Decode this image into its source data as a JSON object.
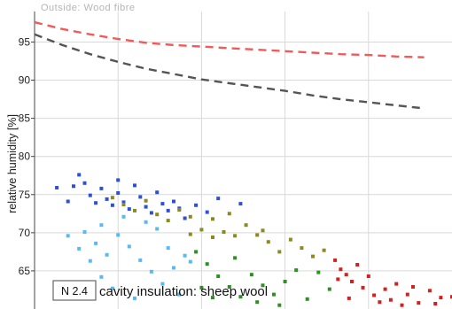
{
  "header": {
    "text": "Outside: Wood fibre"
  },
  "chart_data": {
    "type": "scatter",
    "ylabel": "relative humidity [%]",
    "ylim": [
      60,
      99
    ],
    "yticks": [
      65,
      70,
      75,
      80,
      85,
      90,
      95
    ],
    "grid": true,
    "panel_id": "N 2.4",
    "panel_label": "cavity insulation: sheep wool",
    "curves": [
      {
        "color": "#f05a5a",
        "dash": true,
        "points": [
          [
            0,
            97.6
          ],
          [
            10,
            96.7
          ],
          [
            20,
            96.0
          ],
          [
            30,
            95.4
          ],
          [
            40,
            94.9
          ],
          [
            50,
            94.6
          ],
          [
            60,
            94.4
          ],
          [
            70,
            94.2
          ],
          [
            80,
            94.0
          ],
          [
            90,
            93.8
          ],
          [
            100,
            93.6
          ],
          [
            110,
            93.4
          ],
          [
            120,
            93.3
          ],
          [
            130,
            93.1
          ],
          [
            140,
            93.0
          ]
        ]
      },
      {
        "color": "#555555",
        "dash": true,
        "points": [
          [
            0,
            96.0
          ],
          [
            10,
            94.6
          ],
          [
            20,
            93.4
          ],
          [
            30,
            92.4
          ],
          [
            40,
            91.5
          ],
          [
            50,
            90.8
          ],
          [
            60,
            90.1
          ],
          [
            70,
            89.6
          ],
          [
            80,
            89.1
          ],
          [
            90,
            88.6
          ],
          [
            100,
            88.0
          ],
          [
            110,
            87.5
          ],
          [
            120,
            87.1
          ],
          [
            130,
            86.7
          ],
          [
            140,
            86.3
          ]
        ]
      }
    ],
    "scatter_series": [
      {
        "color": "#2f4fd8",
        "points": [
          [
            8,
            75.9
          ],
          [
            12,
            74.1
          ],
          [
            16,
            77.6
          ],
          [
            18,
            76.5
          ],
          [
            20,
            74.9
          ],
          [
            22,
            73.9
          ],
          [
            24,
            75.8
          ],
          [
            26,
            74.4
          ],
          [
            28,
            73.6
          ],
          [
            30,
            75.2
          ],
          [
            32,
            74.0
          ],
          [
            34,
            73.1
          ],
          [
            36,
            76.2
          ],
          [
            38,
            74.7
          ],
          [
            40,
            73.4
          ],
          [
            42,
            72.6
          ],
          [
            44,
            75.3
          ],
          [
            46,
            73.8
          ],
          [
            48,
            72.9
          ],
          [
            50,
            74.1
          ],
          [
            52,
            73.2
          ],
          [
            54,
            71.9
          ],
          [
            14,
            76.1
          ],
          [
            30,
            76.9
          ],
          [
            58,
            73.6
          ],
          [
            62,
            72.7
          ],
          [
            66,
            74.5
          ],
          [
            74,
            73.8
          ]
        ]
      },
      {
        "color": "#8a8a22",
        "points": [
          [
            28,
            74.6
          ],
          [
            32,
            73.7
          ],
          [
            36,
            72.9
          ],
          [
            40,
            74.2
          ],
          [
            44,
            72.4
          ],
          [
            48,
            71.6
          ],
          [
            52,
            73.0
          ],
          [
            56,
            72.1
          ],
          [
            60,
            70.4
          ],
          [
            64,
            71.8
          ],
          [
            68,
            70.1
          ],
          [
            72,
            69.6
          ],
          [
            76,
            71.0
          ],
          [
            80,
            69.7
          ],
          [
            84,
            68.8
          ],
          [
            88,
            67.5
          ],
          [
            92,
            69.1
          ],
          [
            96,
            68.0
          ],
          [
            100,
            66.9
          ],
          [
            104,
            67.7
          ],
          [
            64,
            69.4
          ],
          [
            56,
            69.8
          ],
          [
            70,
            72.5
          ],
          [
            82,
            70.3
          ]
        ]
      },
      {
        "color": "#55bbf2",
        "points": [
          [
            12,
            69.6
          ],
          [
            16,
            67.9
          ],
          [
            20,
            66.3
          ],
          [
            24,
            64.2
          ],
          [
            18,
            70.1
          ],
          [
            22,
            68.6
          ],
          [
            26,
            67.1
          ],
          [
            30,
            69.7
          ],
          [
            34,
            68.2
          ],
          [
            38,
            66.4
          ],
          [
            42,
            64.9
          ],
          [
            46,
            63.3
          ],
          [
            50,
            65.4
          ],
          [
            54,
            67.0
          ],
          [
            28,
            62.7
          ],
          [
            36,
            61.4
          ],
          [
            44,
            70.5
          ],
          [
            48,
            68.0
          ],
          [
            52,
            61.9
          ],
          [
            40,
            71.4
          ],
          [
            32,
            72.1
          ],
          [
            24,
            71.0
          ],
          [
            20,
            62.3
          ],
          [
            56,
            66.2
          ]
        ]
      },
      {
        "color": "#2f8f24",
        "points": [
          [
            58,
            67.5
          ],
          [
            62,
            65.9
          ],
          [
            66,
            64.3
          ],
          [
            70,
            62.9
          ],
          [
            74,
            61.6
          ],
          [
            78,
            64.5
          ],
          [
            82,
            63.1
          ],
          [
            86,
            61.9
          ],
          [
            90,
            63.6
          ],
          [
            94,
            65.1
          ],
          [
            98,
            61.3
          ],
          [
            64,
            61.5
          ],
          [
            72,
            66.7
          ],
          [
            80,
            60.9
          ],
          [
            88,
            60.5
          ],
          [
            102,
            64.8
          ],
          [
            106,
            62.6
          ],
          [
            60,
            62.8
          ]
        ]
      },
      {
        "color": "#d42020",
        "points": [
          [
            108,
            66.4
          ],
          [
            110,
            65.2
          ],
          [
            112,
            64.5
          ],
          [
            114,
            63.6
          ],
          [
            116,
            65.8
          ],
          [
            118,
            62.8
          ],
          [
            122,
            61.8
          ],
          [
            126,
            62.6
          ],
          [
            128,
            61.2
          ],
          [
            130,
            63.3
          ],
          [
            134,
            61.9
          ],
          [
            138,
            60.8
          ],
          [
            142,
            62.4
          ],
          [
            146,
            61.5
          ],
          [
            150,
            61.6
          ],
          [
            120,
            64.3
          ],
          [
            124,
            60.9
          ],
          [
            132,
            60.5
          ],
          [
            136,
            62.9
          ],
          [
            144,
            60.7
          ],
          [
            109,
            63.9
          ],
          [
            113,
            61.4
          ]
        ]
      }
    ]
  }
}
